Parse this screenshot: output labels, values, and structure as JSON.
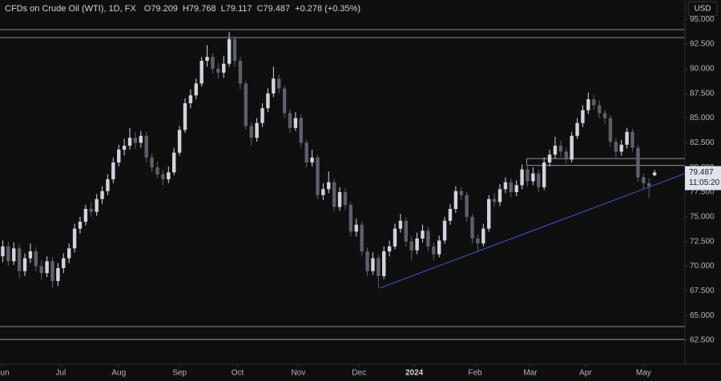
{
  "chart_data": {
    "type": "candlestick",
    "title": "CFDs on Crude Oil (WTI), 1D, FX",
    "legend_values": [
      "O79.209",
      "H79.768",
      "L79.117",
      "C79.487",
      "+0.278 (+0.35%)"
    ],
    "currency": "USD",
    "last_price_label": "79.487",
    "countdown": "11:05:20",
    "up_color": "#d1d4dc",
    "down_color": "#5d606b",
    "x": [
      0,
      2,
      4,
      6,
      8,
      10,
      12,
      14,
      16,
      18,
      20,
      22,
      24,
      26,
      28,
      30,
      32,
      34,
      36,
      38,
      40,
      42,
      44,
      46,
      48,
      50,
      52,
      54,
      56,
      58,
      60,
      62,
      64,
      66,
      68,
      70,
      72,
      74,
      76,
      78,
      80,
      82,
      84,
      86,
      88,
      90,
      92,
      94,
      96,
      98,
      100,
      102,
      104,
      106,
      108,
      110,
      112,
      114,
      116,
      118,
      120,
      122,
      124,
      126,
      128,
      130,
      132,
      134,
      136,
      138,
      140,
      142,
      144,
      146,
      148,
      150,
      152,
      154,
      156,
      158,
      160,
      162,
      164,
      166,
      168,
      170,
      172,
      174,
      176,
      178,
      180,
      182,
      184,
      186,
      188,
      190,
      192,
      194,
      196,
      198,
      200,
      202,
      204,
      206,
      208,
      210,
      212,
      214,
      216,
      218,
      220,
      222,
      224,
      226,
      228,
      230,
      232,
      234,
      236
    ],
    "open": [
      71.0,
      72.0,
      70.5,
      71.8,
      69.5,
      70.8,
      71.5,
      70.0,
      69.3,
      70.5,
      68.5,
      69.8,
      70.8,
      71.8,
      73.8,
      74.5,
      75.8,
      75.5,
      76.8,
      77.6,
      78.8,
      80.5,
      81.8,
      82.2,
      83.0,
      82.5,
      83.2,
      81.0,
      80.0,
      79.3,
      78.8,
      79.5,
      81.5,
      83.8,
      86.5,
      87.3,
      88.5,
      90.8,
      91.2,
      90.0,
      89.6,
      90.5,
      93.0,
      90.8,
      88.5,
      84.2,
      83.0,
      84.5,
      86.0,
      87.5,
      89.0,
      88.0,
      85.5,
      84.0,
      85.0,
      82.5,
      80.5,
      81.0,
      77.2,
      77.8,
      78.5,
      76.0,
      77.5,
      76.2,
      73.5,
      74.2,
      71.5,
      69.5,
      70.8,
      69.0,
      71.5,
      72.0,
      73.8,
      74.6,
      72.5,
      71.6,
      72.8,
      73.6,
      72.0,
      71.2,
      72.6,
      74.6,
      75.8,
      77.6,
      77.2,
      75.0,
      72.8,
      72.3,
      73.8,
      76.8,
      76.5,
      77.8,
      78.5,
      77.5,
      78.2,
      79.8,
      78.6,
      79.4,
      78.0,
      80.5,
      81.3,
      82.2,
      81.6,
      80.8,
      83.2,
      84.5,
      85.8,
      86.9,
      86.3,
      85.5,
      85.0,
      82.6,
      81.6,
      82.3,
      83.6,
      82.0,
      79.0,
      78.4,
      79.209
    ],
    "high": [
      72.6,
      72.5,
      72.4,
      72.2,
      71.3,
      72.3,
      71.9,
      70.6,
      71.0,
      70.9,
      70.3,
      71.3,
      72.3,
      74.3,
      75.0,
      76.2,
      76.5,
      77.3,
      78.1,
      79.3,
      81.0,
      82.3,
      82.9,
      84.0,
      83.6,
      83.7,
      83.6,
      81.4,
      80.6,
      79.8,
      80.1,
      82.0,
      84.2,
      87.0,
      87.9,
      89.0,
      91.2,
      92.4,
      91.6,
      90.6,
      91.3,
      93.7,
      93.3,
      91.2,
      88.8,
      84.6,
      85.0,
      86.5,
      88.0,
      90.2,
      89.4,
      88.3,
      85.9,
      85.6,
      85.4,
      82.8,
      81.8,
      81.3,
      78.4,
      79.6,
      78.9,
      78.0,
      77.9,
      76.5,
      74.8,
      74.5,
      71.9,
      71.4,
      71.2,
      72.0,
      72.6,
      74.3,
      75.3,
      74.9,
      73.0,
      73.4,
      74.2,
      74.0,
      72.4,
      73.1,
      75.0,
      76.3,
      78.1,
      78.0,
      77.5,
      75.3,
      73.2,
      74.3,
      77.2,
      77.4,
      78.3,
      79.0,
      78.9,
      78.7,
      80.3,
      80.1,
      80.0,
      79.8,
      81.0,
      81.8,
      83.1,
      82.7,
      82.0,
      83.6,
      85.0,
      86.3,
      87.6,
      87.4,
      86.8,
      85.8,
      85.3,
      83.0,
      82.8,
      84.0,
      83.9,
      82.3,
      79.4,
      78.9,
      79.768
    ],
    "low": [
      70.4,
      70.0,
      70.1,
      68.8,
      69.0,
      70.3,
      69.5,
      68.6,
      68.9,
      67.8,
      68.0,
      69.3,
      70.3,
      71.4,
      73.3,
      74.1,
      75.0,
      75.1,
      76.3,
      77.2,
      78.4,
      80.1,
      81.2,
      81.8,
      81.9,
      82.0,
      80.5,
      79.5,
      78.9,
      78.2,
      78.4,
      79.2,
      81.2,
      83.5,
      86.0,
      86.9,
      88.2,
      90.2,
      89.5,
      89.0,
      89.1,
      90.2,
      90.2,
      87.9,
      83.8,
      82.2,
      82.6,
      84.1,
      85.6,
      87.1,
      87.5,
      85.0,
      83.5,
      83.7,
      82.0,
      80.0,
      80.1,
      76.8,
      76.7,
      77.4,
      75.5,
      75.6,
      75.7,
      73.0,
      73.0,
      71.0,
      69.0,
      69.1,
      67.8,
      68.7,
      71.0,
      71.7,
      73.4,
      72.0,
      70.6,
      71.2,
      72.4,
      71.5,
      70.6,
      70.9,
      72.3,
      74.2,
      75.4,
      76.7,
      74.5,
      72.3,
      71.6,
      72.0,
      73.5,
      76.0,
      76.1,
      77.4,
      77.0,
      77.1,
      77.8,
      78.1,
      78.2,
      77.5,
      77.7,
      80.1,
      80.9,
      81.1,
      80.3,
      80.5,
      82.9,
      84.1,
      85.4,
      85.8,
      85.0,
      84.4,
      82.1,
      81.0,
      81.2,
      81.9,
      81.6,
      78.6,
      77.8,
      76.9,
      79.117
    ],
    "close": [
      72.0,
      70.5,
      71.8,
      69.5,
      70.8,
      71.5,
      70.0,
      69.3,
      70.5,
      68.5,
      69.8,
      70.8,
      71.8,
      73.8,
      74.5,
      75.8,
      75.5,
      76.8,
      77.6,
      78.8,
      80.5,
      81.8,
      82.2,
      83.0,
      82.5,
      83.2,
      81.0,
      80.0,
      79.3,
      78.8,
      79.5,
      81.5,
      83.8,
      86.5,
      87.3,
      88.5,
      90.8,
      91.2,
      90.0,
      89.6,
      90.5,
      93.0,
      90.8,
      88.5,
      84.2,
      83.0,
      84.5,
      86.0,
      87.5,
      89.0,
      88.0,
      85.5,
      84.0,
      85.0,
      82.5,
      80.5,
      81.0,
      77.2,
      77.8,
      78.5,
      76.0,
      77.5,
      76.2,
      73.5,
      74.2,
      71.5,
      69.5,
      70.8,
      69.0,
      71.5,
      72.0,
      73.8,
      74.6,
      72.5,
      71.6,
      72.8,
      73.6,
      72.0,
      71.2,
      72.6,
      74.6,
      75.8,
      77.6,
      77.2,
      75.0,
      72.8,
      72.3,
      73.8,
      76.8,
      76.5,
      77.8,
      78.5,
      77.5,
      78.2,
      79.8,
      78.6,
      79.4,
      78.0,
      80.5,
      81.3,
      82.2,
      81.6,
      80.8,
      83.2,
      84.5,
      85.8,
      86.9,
      86.3,
      85.5,
      85.0,
      82.6,
      81.6,
      82.3,
      83.6,
      82.0,
      79.0,
      78.4,
      78.1,
      79.487
    ],
    "xlim": [
      -1,
      247
    ],
    "ylim": [
      60.07,
      96.96
    ],
    "xticks": [
      {
        "value": 0,
        "label": "Jun"
      },
      {
        "value": 21,
        "label": "Jul"
      },
      {
        "value": 42,
        "label": "Aug"
      },
      {
        "value": 64,
        "label": "Sep"
      },
      {
        "value": 85,
        "label": "Oct"
      },
      {
        "value": 107,
        "label": "Nov"
      },
      {
        "value": 129,
        "label": "Dec"
      },
      {
        "value": 149,
        "label": "2024"
      },
      {
        "value": 171,
        "label": "Feb"
      },
      {
        "value": 191,
        "label": "Mar"
      },
      {
        "value": 211,
        "label": "Apr"
      },
      {
        "value": 232,
        "label": "May"
      }
    ],
    "yticks": [
      {
        "value": 62.5,
        "label": "62.500"
      },
      {
        "value": 65,
        "label": "65.000"
      },
      {
        "value": 67.5,
        "label": "67.500"
      },
      {
        "value": 70,
        "label": "70.000"
      },
      {
        "value": 72.5,
        "label": "72.500"
      },
      {
        "value": 75,
        "label": "75.000"
      },
      {
        "value": 77.5,
        "label": "77.500"
      },
      {
        "value": 80,
        "label": "80.000"
      },
      {
        "value": 82.5,
        "label": "82.500"
      },
      {
        "value": 85,
        "label": "85.000"
      },
      {
        "value": 87.5,
        "label": "87.500"
      },
      {
        "value": 90,
        "label": "90.000"
      },
      {
        "value": 92.5,
        "label": "92.500"
      },
      {
        "value": 95,
        "label": "95.000"
      }
    ],
    "hlines": [
      93.96,
      93.15,
      63.88,
      62.58
    ],
    "zone": {
      "x_start": 189.7,
      "low": 80.2,
      "high": 80.9
    },
    "trendline": {
      "x": [
        136.4,
        246.8
      ],
      "y": [
        67.77,
        79.36
      ],
      "color": "#3f5bd8"
    }
  }
}
